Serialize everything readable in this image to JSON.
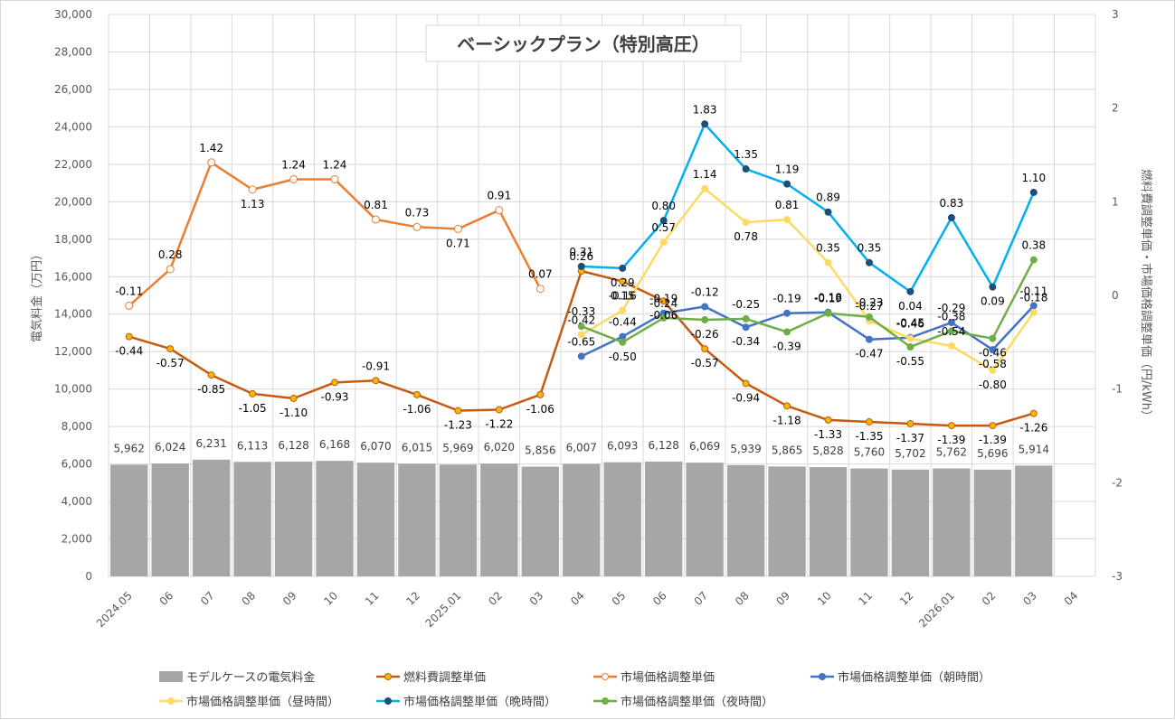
{
  "chart_data": {
    "type": "bar+line",
    "title": "ベーシックプラン（特別高圧）",
    "y_left_label": "電気料金（万円）",
    "y_right_label": "燃料費調整単価・市場価格調整単価（円/kWh）",
    "y_left_range": [
      0,
      30000
    ],
    "y_left_ticks": [
      "0",
      "2,000",
      "4,000",
      "6,000",
      "8,000",
      "10,000",
      "12,000",
      "14,000",
      "16,000",
      "18,000",
      "20,000",
      "22,000",
      "24,000",
      "26,000",
      "28,000",
      "30,000"
    ],
    "y_right_range": [
      -3,
      3
    ],
    "y_right_ticks": [
      "-3",
      "-2",
      "-1",
      "0",
      "1",
      "2",
      "3"
    ],
    "categories": [
      "2024.05",
      "06",
      "07",
      "08",
      "09",
      "10",
      "11",
      "12",
      "2025.01",
      "02",
      "03",
      "04",
      "05",
      "06",
      "07",
      "08",
      "09",
      "10",
      "11",
      "12",
      "2026.01",
      "02",
      "03",
      "04"
    ],
    "grid": true,
    "legend_position": "bottom",
    "bar_series": {
      "name": "モデルケースの電気料金",
      "color": "#a6a6a6",
      "values": [
        5962,
        6024,
        6231,
        6113,
        6128,
        6168,
        6070,
        6015,
        5969,
        6020,
        5856,
        6007,
        6093,
        6128,
        6069,
        5939,
        5865,
        5828,
        5760,
        5702,
        5762,
        5696,
        5914,
        null
      ],
      "labels": [
        "5,962",
        "6,024",
        "6,231",
        "6,113",
        "6,128",
        "6,168",
        "6,070",
        "6,015",
        "5,969",
        "6,020",
        "5,856",
        "6,007",
        "6,093",
        "6,128",
        "6,069",
        "5,939",
        "5,865",
        "5,828",
        "5,760",
        "5,702",
        "5,762",
        "5,696",
        "5,914",
        ""
      ]
    },
    "line_series": [
      {
        "name": "燃料費調整単価",
        "color": "#c55a11",
        "marker": "filled-orange",
        "values": [
          -0.44,
          -0.57,
          -0.85,
          -1.05,
          -1.1,
          -0.93,
          -0.91,
          -1.06,
          -1.23,
          -1.22,
          -1.06,
          0.26,
          0.15,
          -0.06,
          -0.57,
          -0.94,
          -1.18,
          -1.33,
          -1.35,
          -1.37,
          -1.39,
          -1.39,
          -1.26,
          null
        ],
        "labels": [
          "-0.44",
          "-0.57",
          "-0.85",
          "-1.05",
          "-1.10",
          "-0.93",
          "-0.91",
          "-1.06",
          "-1.23",
          "-1.22",
          "-1.06",
          "0.26",
          "0.15",
          "-0.06",
          "-0.57",
          "-0.94",
          "-1.18",
          "-1.33",
          "-1.35",
          "-1.37",
          "-1.39",
          "-1.39",
          "-1.26",
          ""
        ]
      },
      {
        "name": "市場価格調整単価",
        "color": "#ed7d31",
        "marker": "hollow",
        "values": [
          -0.11,
          0.28,
          1.42,
          1.13,
          1.24,
          1.24,
          0.81,
          0.73,
          0.71,
          0.91,
          0.07,
          null,
          null,
          null,
          null,
          null,
          null,
          null,
          null,
          null,
          null,
          null,
          null,
          null
        ],
        "labels": [
          "-0.11",
          "0.28",
          "1.42",
          "1.13",
          "1.24",
          "1.24",
          "0.81",
          "0.73",
          "0.71",
          "0.91",
          "0.07",
          "",
          "",
          "",
          "",
          "",
          "",
          "",
          "",
          "",
          "",
          "",
          "",
          ""
        ]
      },
      {
        "name": "市場価格調整単価（朝時間）",
        "color": "#4472c4",
        "marker": "filled",
        "values": [
          null,
          null,
          null,
          null,
          null,
          null,
          null,
          null,
          null,
          null,
          null,
          -0.65,
          -0.44,
          -0.19,
          -0.12,
          -0.34,
          -0.19,
          -0.18,
          -0.47,
          -0.45,
          -0.29,
          -0.58,
          -0.11,
          null
        ],
        "labels": [
          "",
          "",
          "",
          "",
          "",
          "",
          "",
          "",
          "",
          "",
          "",
          "-0.65",
          "-0.44",
          "-0.19",
          "-0.12",
          "-0.34",
          "-0.19",
          "-0.18",
          "-0.47",
          "-0.45",
          "-0.29",
          "-0.58",
          "-0.11",
          ""
        ]
      },
      {
        "name": "市場価格調整単価（昼時間）",
        "color": "#ffd966",
        "marker": "filled",
        "values": [
          null,
          null,
          null,
          null,
          null,
          null,
          null,
          null,
          null,
          null,
          null,
          -0.42,
          -0.16,
          0.57,
          1.14,
          0.78,
          0.81,
          0.35,
          -0.27,
          -0.46,
          -0.54,
          -0.8,
          -0.18,
          null
        ],
        "labels": [
          "",
          "",
          "",
          "",
          "",
          "",
          "",
          "",
          "",
          "",
          "",
          "-0.42",
          "-0.16",
          "0.57",
          "1.14",
          "0.78",
          "0.81",
          "0.35",
          "-0.27",
          "-0.46",
          "-0.54",
          "-0.80",
          "-0.18",
          ""
        ]
      },
      {
        "name": "市場価格調整単価（晩時間）",
        "color": "#00b0f0",
        "marker": "filled-dark",
        "values": [
          null,
          null,
          null,
          null,
          null,
          null,
          null,
          null,
          null,
          null,
          null,
          0.31,
          0.29,
          0.8,
          1.83,
          1.35,
          1.19,
          0.89,
          0.35,
          0.04,
          0.83,
          0.09,
          1.1,
          null
        ],
        "labels": [
          "",
          "",
          "",
          "",
          "",
          "",
          "",
          "",
          "",
          "",
          "",
          "0.31",
          "0.29",
          "0.80",
          "1.83",
          "1.35",
          "1.19",
          "0.89",
          "0.35",
          "0.04",
          "0.83",
          "0.09",
          "1.10",
          ""
        ]
      },
      {
        "name": "市場価格調整単価（夜時間）",
        "color": "#70ad47",
        "marker": "filled",
        "values": [
          null,
          null,
          null,
          null,
          null,
          null,
          null,
          null,
          null,
          null,
          null,
          -0.33,
          -0.5,
          -0.24,
          -0.26,
          -0.25,
          -0.39,
          -0.19,
          -0.23,
          -0.55,
          -0.38,
          -0.46,
          0.38,
          null
        ],
        "labels": [
          "",
          "",
          "",
          "",
          "",
          "",
          "",
          "",
          "",
          "",
          "",
          "-0.33",
          "-0.50",
          "-0.24",
          "-0.26",
          "-0.25",
          "-0.39",
          "-0.19",
          "-0.23",
          "-0.55",
          "-0.38",
          "-0.46",
          "0.38",
          ""
        ]
      }
    ]
  }
}
